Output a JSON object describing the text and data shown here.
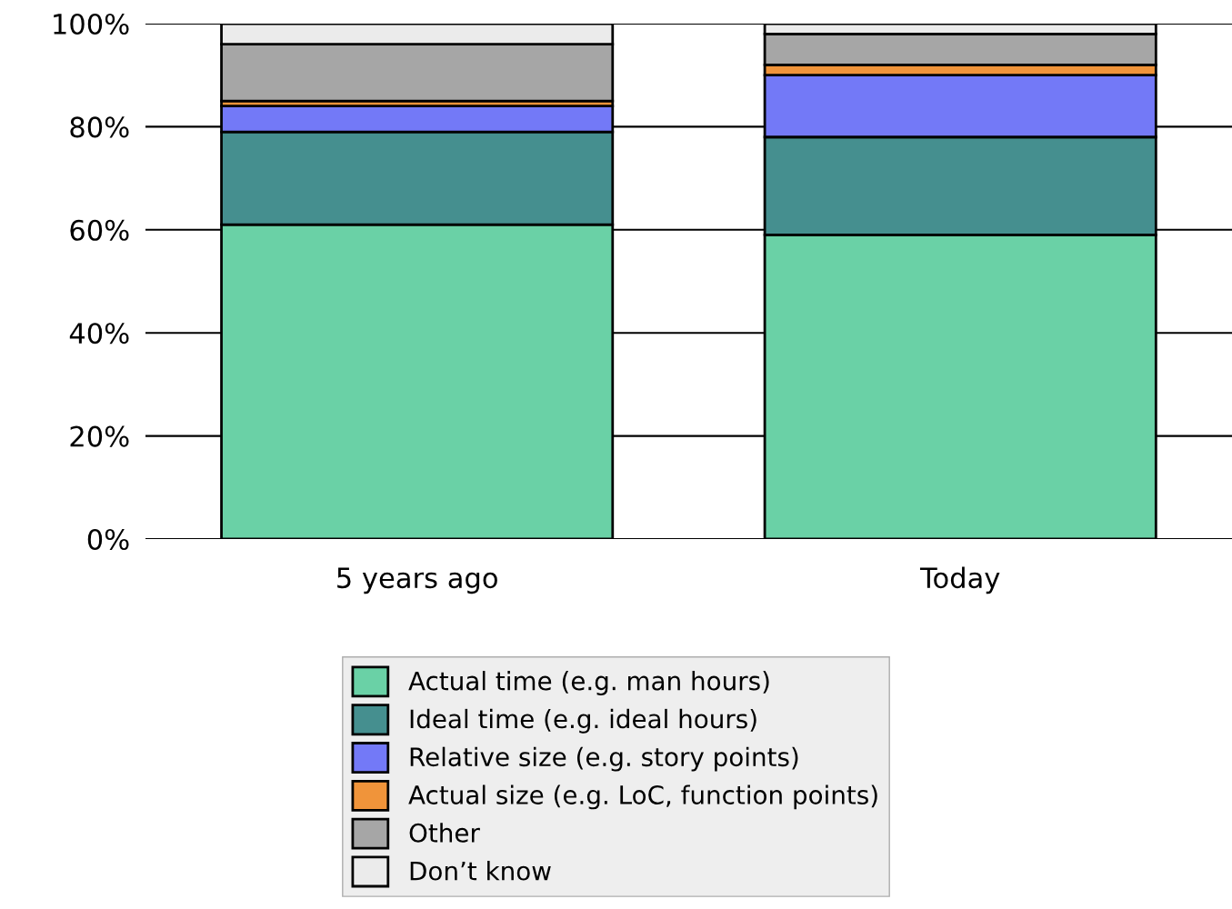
{
  "chart_data": {
    "type": "bar",
    "stacked": true,
    "categories": [
      "5 years ago",
      "Today"
    ],
    "series": [
      {
        "name": "Actual time (e.g. man hours)",
        "color": "#6ad1a6",
        "values": [
          61,
          59
        ]
      },
      {
        "name": "Ideal time (e.g. ideal hours)",
        "color": "#458f8f",
        "values": [
          18,
          19
        ]
      },
      {
        "name": "Relative size (e.g. story points)",
        "color": "#7379f7",
        "values": [
          5,
          12
        ]
      },
      {
        "name": "Actual size (e.g. LoC, function points)",
        "color": "#f0943a",
        "values": [
          1,
          2
        ]
      },
      {
        "name": "Other",
        "color": "#a6a6a6",
        "values": [
          11,
          6
        ]
      },
      {
        "name": "Don’t know",
        "color": "#ebebeb",
        "values": [
          4,
          2
        ]
      }
    ],
    "ylim": [
      0,
      100
    ],
    "yticks": [
      {
        "value": 0,
        "label": "0%"
      },
      {
        "value": 20,
        "label": "20%"
      },
      {
        "value": 40,
        "label": "40%"
      },
      {
        "value": 60,
        "label": "60%"
      },
      {
        "value": 80,
        "label": "80%"
      },
      {
        "value": 100,
        "label": "100%"
      }
    ],
    "grid": "y",
    "legend": "bottom"
  }
}
